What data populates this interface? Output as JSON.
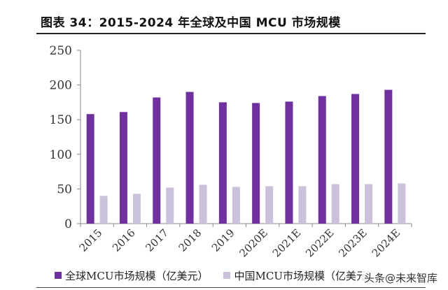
{
  "title": "图表 34：2015-2024 年全球及中国 MCU 市场规模",
  "watermark": "头条@未来智库",
  "chart_data": {
    "type": "bar",
    "categories": [
      "2015",
      "2016",
      "2017",
      "2018",
      "2019",
      "2020E",
      "2021E",
      "2022E",
      "2023E",
      "2024E"
    ],
    "series": [
      {
        "name": "全球MCU市场规模（亿美元）",
        "color": "#7030a0",
        "values": [
          158,
          161,
          182,
          190,
          175,
          174,
          176,
          184,
          187,
          193
        ]
      },
      {
        "name": "中国MCU市场规模（亿美元）",
        "color": "#ccc1da",
        "values": [
          40,
          43,
          52,
          56,
          53,
          54,
          54,
          57,
          57,
          58
        ]
      }
    ],
    "ylim": [
      0,
      250
    ],
    "yticks": [
      0,
      50,
      100,
      150,
      200,
      250
    ],
    "grid": false,
    "legend": "bottom"
  }
}
